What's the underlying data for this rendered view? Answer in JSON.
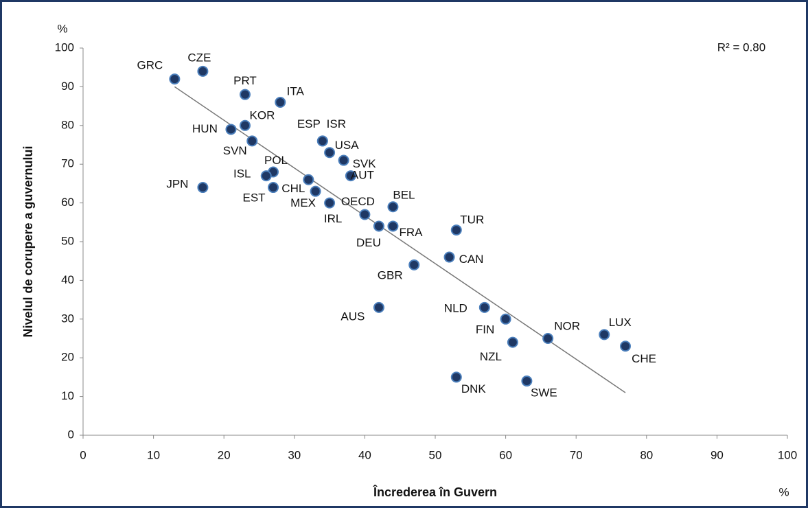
{
  "chart_data": {
    "type": "scatter",
    "x_label": "Încrederea în Guvern",
    "x_unit": "%",
    "y_label": "Nivelul de corupere a guvernului",
    "y_unit": "%",
    "annotation": "R² = 0.80",
    "color": "#1f3864",
    "edge_color": "#4a7ebb",
    "labels": [
      "GRC",
      "CZE",
      "PRT",
      "ITA",
      "KOR",
      "HUN",
      "SVN",
      "ESP",
      "ISR",
      "USA",
      "SVK",
      "AUT",
      "POL",
      "ISL",
      "JPN",
      "EST",
      "CHL",
      "MEX",
      "IRL",
      "OECD",
      "BEL",
      "DEU",
      "FRA",
      "TUR",
      "CAN",
      "GBR",
      "AUS",
      "NLD",
      "FIN",
      "NZL",
      "NOR",
      "LUX",
      "CHE",
      "DNK",
      "SWE"
    ],
    "x": [
      13,
      17,
      23,
      28,
      23,
      21,
      24,
      34,
      34,
      35,
      37,
      38,
      27,
      26,
      17,
      27,
      32,
      33,
      35,
      40,
      44,
      42,
      44,
      53,
      52,
      47,
      42,
      57,
      60,
      61,
      66,
      74,
      77,
      53,
      63
    ],
    "y": [
      92,
      94,
      88,
      86,
      80,
      79,
      76,
      76,
      76,
      73,
      71,
      67,
      68,
      67,
      64,
      64,
      66,
      63,
      60,
      57,
      59,
      54,
      54,
      53,
      46,
      44,
      33,
      33,
      30,
      24,
      25,
      26,
      23,
      15,
      14
    ],
    "trendline": {
      "x": [
        13,
        77
      ],
      "y": [
        90,
        11
      ]
    },
    "xlim": [
      0,
      100
    ],
    "ylim": [
      0,
      100
    ],
    "xticks": [
      0,
      10,
      20,
      30,
      40,
      50,
      60,
      70,
      80,
      90,
      100
    ],
    "yticks": [
      0,
      10,
      20,
      30,
      40,
      50,
      60,
      70,
      80,
      90,
      100
    ]
  }
}
